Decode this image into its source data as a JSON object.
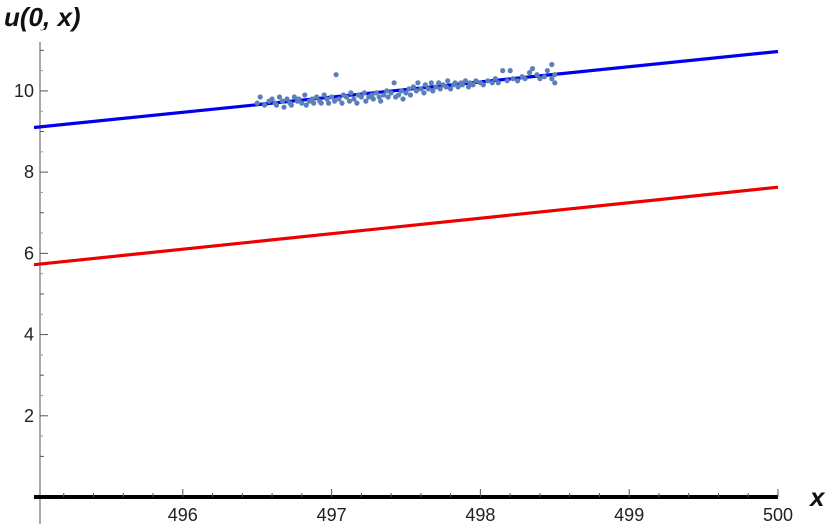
{
  "chart_data": {
    "type": "scatter",
    "title": "",
    "xlabel": "x",
    "ylabel": "u(0, x)",
    "xlim": [
      495.0,
      500.0
    ],
    "ylim": [
      0,
      11.5
    ],
    "grid": false,
    "x_ticks": [
      496,
      497,
      498,
      499,
      500
    ],
    "x_tick_labels": [
      "496",
      "497",
      "498",
      "499",
      "500"
    ],
    "y_ticks": [
      2,
      4,
      6,
      8,
      10
    ],
    "y_tick_labels": [
      "2",
      "4",
      "6",
      "8",
      "10"
    ],
    "lines": [
      {
        "color": "#0000ee",
        "x": [
          495.0,
          500.0
        ],
        "y": [
          9.1,
          10.97
        ]
      },
      {
        "color": "#ee0000",
        "x": [
          495.0,
          500.0
        ],
        "y": [
          5.72,
          7.63
        ]
      }
    ],
    "scatter": {
      "color": "#5b7fba",
      "points": [
        [
          496.5,
          9.7
        ],
        [
          496.52,
          9.85
        ],
        [
          496.55,
          9.65
        ],
        [
          496.58,
          9.75
        ],
        [
          496.6,
          9.8
        ],
        [
          496.62,
          9.7
        ],
        [
          496.63,
          9.65
        ],
        [
          496.65,
          9.85
        ],
        [
          496.67,
          9.75
        ],
        [
          496.68,
          9.6
        ],
        [
          496.7,
          9.8
        ],
        [
          496.72,
          9.7
        ],
        [
          496.73,
          9.65
        ],
        [
          496.75,
          9.85
        ],
        [
          496.77,
          9.75
        ],
        [
          496.78,
          9.8
        ],
        [
          496.8,
          9.7
        ],
        [
          496.82,
          9.9
        ],
        [
          496.83,
          9.65
        ],
        [
          496.85,
          9.75
        ],
        [
          496.87,
          9.8
        ],
        [
          496.88,
          9.7
        ],
        [
          496.9,
          9.85
        ],
        [
          496.92,
          9.75
        ],
        [
          496.93,
          9.7
        ],
        [
          496.95,
          9.9
        ],
        [
          496.97,
          9.8
        ],
        [
          496.98,
          9.7
        ],
        [
          497.0,
          9.85
        ],
        [
          497.02,
          9.75
        ],
        [
          497.03,
          10.4
        ],
        [
          497.05,
          9.8
        ],
        [
          497.07,
          9.7
        ],
        [
          497.08,
          9.9
        ],
        [
          497.1,
          9.85
        ],
        [
          497.12,
          9.75
        ],
        [
          497.13,
          9.95
        ],
        [
          497.15,
          9.8
        ],
        [
          497.17,
          9.7
        ],
        [
          497.18,
          9.9
        ],
        [
          497.2,
          9.85
        ],
        [
          497.22,
          9.95
        ],
        [
          497.23,
          9.75
        ],
        [
          497.25,
          9.85
        ],
        [
          497.27,
          9.9
        ],
        [
          497.28,
          9.8
        ],
        [
          497.3,
          9.95
        ],
        [
          497.32,
          9.85
        ],
        [
          497.33,
          9.75
        ],
        [
          497.35,
          9.9
        ],
        [
          497.37,
          10.0
        ],
        [
          497.38,
          9.85
        ],
        [
          497.4,
          9.95
        ],
        [
          497.42,
          10.2
        ],
        [
          497.43,
          9.85
        ],
        [
          497.45,
          9.9
        ],
        [
          497.47,
          10.0
        ],
        [
          497.48,
          9.8
        ],
        [
          497.5,
          9.95
        ],
        [
          497.52,
          10.05
        ],
        [
          497.53,
          9.9
        ],
        [
          497.55,
          10.1
        ],
        [
          497.57,
          10.0
        ],
        [
          497.58,
          10.2
        ],
        [
          497.6,
          10.05
        ],
        [
          497.62,
          9.95
        ],
        [
          497.63,
          10.15
        ],
        [
          497.65,
          10.05
        ],
        [
          497.67,
          10.2
        ],
        [
          497.68,
          10.0
        ],
        [
          497.7,
          10.1
        ],
        [
          497.72,
          10.2
        ],
        [
          497.73,
          10.05
        ],
        [
          497.75,
          10.15
        ],
        [
          497.77,
          10.1
        ],
        [
          497.78,
          10.25
        ],
        [
          497.8,
          10.05
        ],
        [
          497.82,
          10.15
        ],
        [
          497.83,
          10.2
        ],
        [
          497.85,
          10.1
        ],
        [
          497.87,
          10.2
        ],
        [
          497.88,
          10.15
        ],
        [
          497.9,
          10.25
        ],
        [
          497.92,
          10.1
        ],
        [
          497.93,
          10.2
        ],
        [
          497.95,
          10.15
        ],
        [
          497.97,
          10.25
        ],
        [
          498.0,
          10.2
        ],
        [
          498.02,
          10.15
        ],
        [
          498.05,
          10.25
        ],
        [
          498.08,
          10.2
        ],
        [
          498.1,
          10.3
        ],
        [
          498.12,
          10.2
        ],
        [
          498.15,
          10.5
        ],
        [
          498.18,
          10.25
        ],
        [
          498.2,
          10.5
        ],
        [
          498.22,
          10.3
        ],
        [
          498.25,
          10.25
        ],
        [
          498.28,
          10.35
        ],
        [
          498.3,
          10.3
        ],
        [
          498.33,
          10.45
        ],
        [
          498.35,
          10.55
        ],
        [
          498.38,
          10.4
        ],
        [
          498.4,
          10.3
        ],
        [
          498.43,
          10.35
        ],
        [
          498.45,
          10.5
        ],
        [
          498.48,
          10.3
        ],
        [
          498.5,
          10.4
        ],
        [
          498.48,
          10.65
        ],
        [
          498.5,
          10.2
        ]
      ]
    }
  }
}
